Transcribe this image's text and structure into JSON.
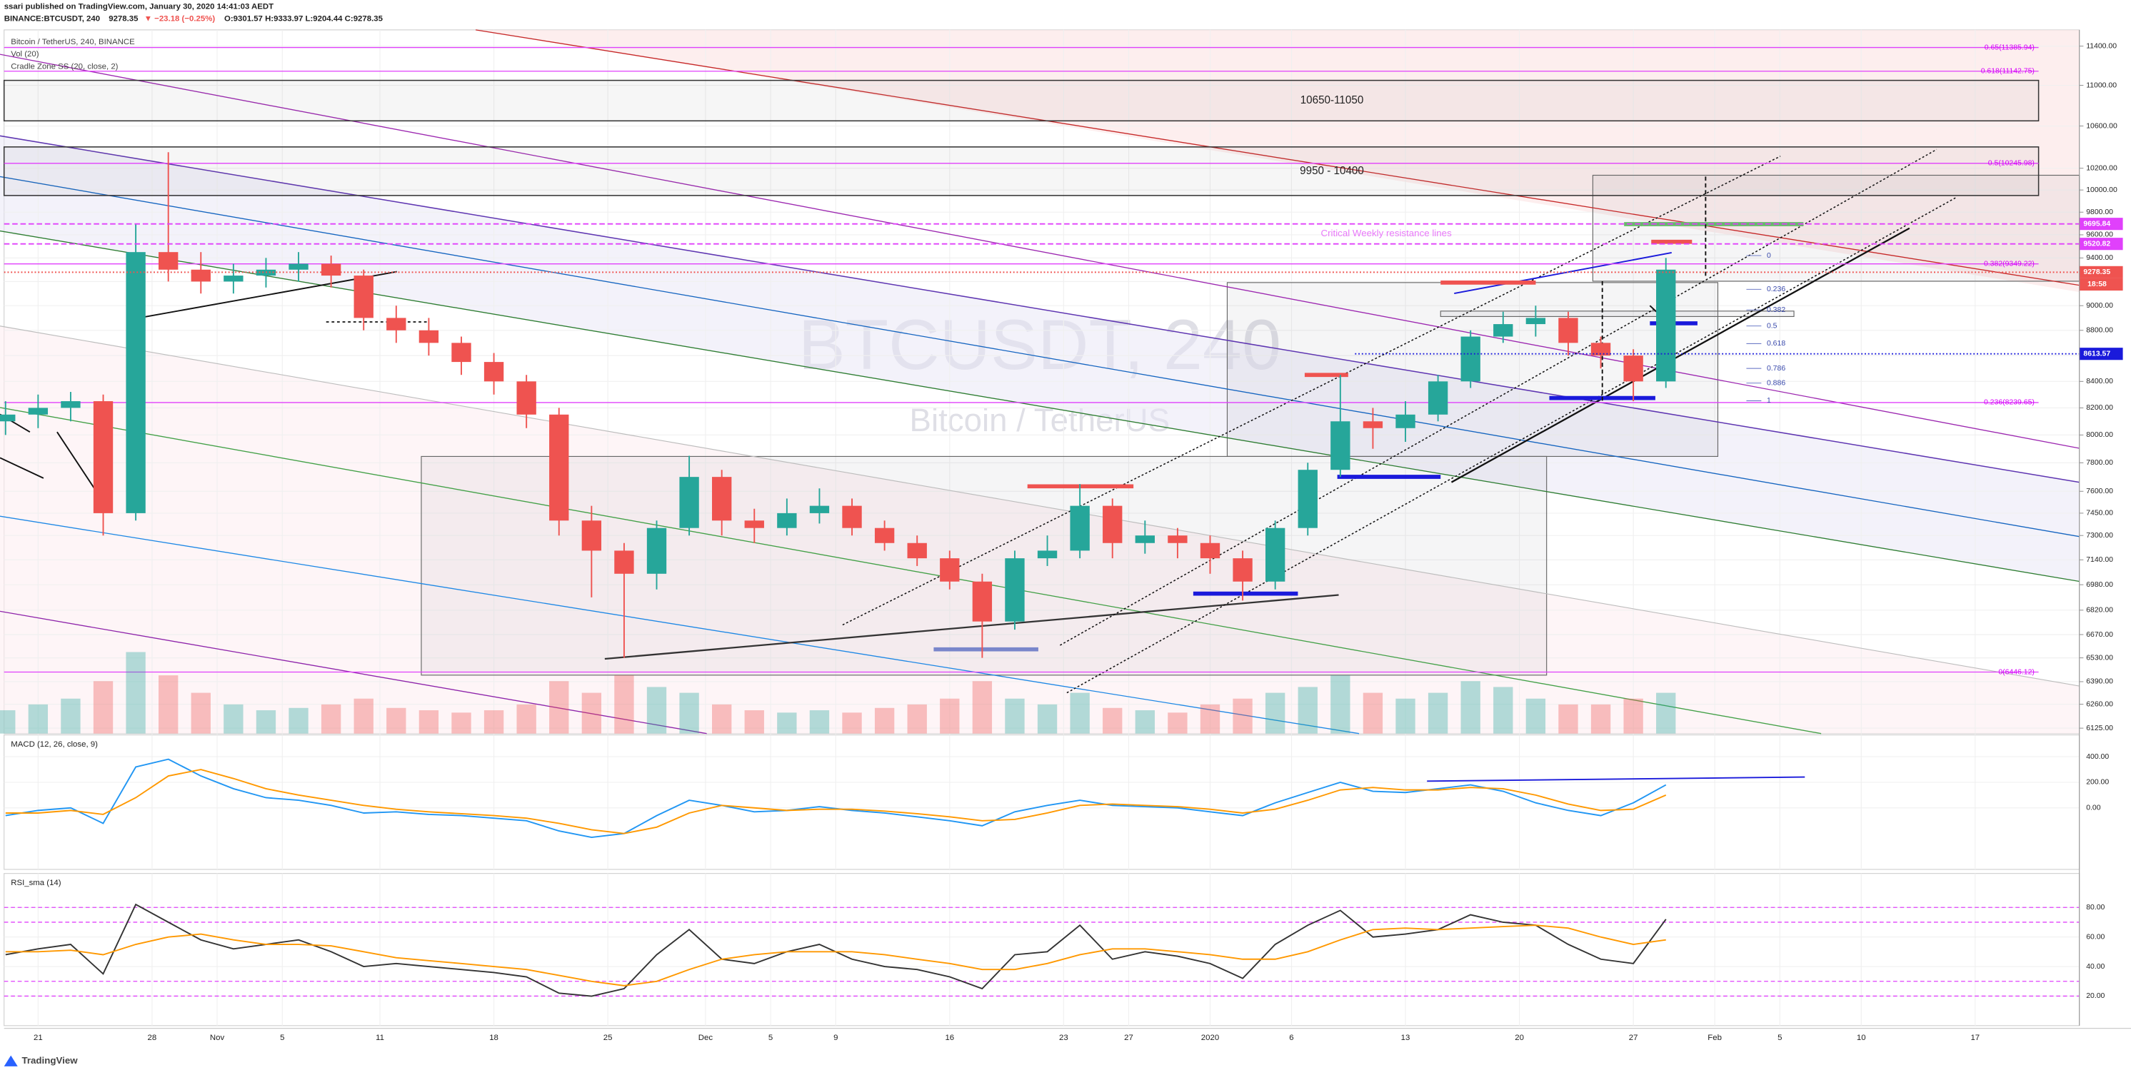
{
  "header": {
    "published": "ssari published on TradingView.com, January 30, 2020 14:41:03 AEDT",
    "symbol": "BINANCE:BTCUSDT, 240",
    "price": "9278.35",
    "change": "▼ −23.18 (−0.25%)",
    "ohlc": "O:9301.57 H:9333.97 L:9204.44 C:9278.35"
  },
  "footer": "TradingView",
  "chart_data": {
    "type": "candlestick",
    "legend": [
      "Bitcoin / TetherUS, 240, BINANCE",
      "Vol (20)",
      "Cradle Zone SS (20, close, 2)"
    ],
    "watermark": {
      "symbol": "BTCUSDT, 240",
      "name": "Bitcoin / TetherUS"
    },
    "up_color": "#26a69a",
    "down_color": "#ef5350",
    "log": true,
    "grid": true,
    "x": [
      -2,
      0,
      2,
      4,
      6,
      8,
      10,
      12,
      14,
      16,
      18,
      20,
      22,
      24,
      26,
      28,
      30,
      32,
      34,
      36,
      38,
      40,
      42,
      44,
      46,
      48,
      50,
      52,
      54,
      56,
      58,
      60,
      62,
      64,
      66,
      68,
      70,
      72,
      74,
      76,
      78,
      80,
      82,
      84,
      86,
      88,
      90,
      92,
      94,
      96,
      98,
      100
    ],
    "open": [
      8100,
      8150,
      8200,
      8250,
      7450,
      9450,
      9300,
      9200,
      9250,
      9300,
      9350,
      9250,
      8900,
      8800,
      8700,
      8550,
      8400,
      8150,
      7400,
      7200,
      7050,
      7350,
      7700,
      7400,
      7350,
      7450,
      7500,
      7350,
      7250,
      7150,
      7000,
      6750,
      7150,
      7200,
      7500,
      7250,
      7300,
      7250,
      7150,
      7000,
      7350,
      7750,
      8100,
      8050,
      8150,
      8400,
      8750,
      8850,
      8900,
      8700,
      8600,
      8400
    ],
    "high": [
      8250,
      8300,
      8320,
      8300,
      9700,
      10350,
      9450,
      9350,
      9400,
      9450,
      9420,
      9300,
      9000,
      8900,
      8750,
      8620,
      8450,
      8200,
      7500,
      7250,
      7400,
      7850,
      7750,
      7480,
      7550,
      7620,
      7550,
      7400,
      7300,
      7200,
      7050,
      7200,
      7300,
      7650,
      7550,
      7400,
      7350,
      7300,
      7200,
      7400,
      7800,
      8450,
      8200,
      8250,
      8450,
      8800,
      8950,
      9000,
      8950,
      8750,
      8650,
      9400
    ],
    "low": [
      8000,
      8050,
      8100,
      7300,
      7400,
      9200,
      9100,
      9100,
      9150,
      9200,
      9150,
      8800,
      8700,
      8600,
      8450,
      8300,
      8050,
      7300,
      6900,
      6530,
      6950,
      7300,
      7300,
      7250,
      7300,
      7380,
      7300,
      7200,
      7100,
      6950,
      6530,
      6700,
      7100,
      7150,
      7150,
      7180,
      7150,
      7050,
      6880,
      6950,
      7300,
      7700,
      7900,
      7950,
      8100,
      8350,
      8700,
      8750,
      8600,
      8500,
      8250,
      8350
    ],
    "close": [
      8150,
      8200,
      8250,
      7450,
      9450,
      9300,
      9200,
      9250,
      9300,
      9350,
      9250,
      8900,
      8800,
      8700,
      8550,
      8400,
      8150,
      7400,
      7200,
      7050,
      7350,
      7700,
      7400,
      7350,
      7450,
      7500,
      7350,
      7250,
      7150,
      7000,
      6750,
      7150,
      7200,
      7500,
      7250,
      7300,
      7250,
      7150,
      7000,
      7350,
      7750,
      8100,
      8050,
      8150,
      8400,
      8750,
      8850,
      8900,
      8700,
      8600,
      8400,
      9300
    ],
    "volume": [
      20,
      25,
      30,
      45,
      70,
      50,
      35,
      25,
      20,
      22,
      25,
      30,
      22,
      20,
      18,
      20,
      25,
      45,
      35,
      50,
      40,
      35,
      25,
      20,
      18,
      20,
      18,
      22,
      25,
      30,
      45,
      30,
      25,
      35,
      22,
      20,
      18,
      25,
      30,
      35,
      40,
      50,
      35,
      30,
      35,
      45,
      40,
      30,
      25,
      25,
      30,
      35
    ],
    "xlim": [
      -2.09,
      125.4
    ],
    "xticks": [
      {
        "value": 0,
        "label": "21"
      },
      {
        "value": 7,
        "label": "28"
      },
      {
        "value": 11,
        "label": "Nov"
      },
      {
        "value": 15,
        "label": "5"
      },
      {
        "value": 21,
        "label": "11"
      },
      {
        "value": 28,
        "label": "18"
      },
      {
        "value": 35,
        "label": "25"
      },
      {
        "value": 41,
        "label": "Dec"
      },
      {
        "value": 45,
        "label": "5"
      },
      {
        "value": 49,
        "label": "9"
      },
      {
        "value": 56,
        "label": "16"
      },
      {
        "value": 63,
        "label": "23"
      },
      {
        "value": 67,
        "label": "27"
      },
      {
        "value": 72,
        "label": "2020"
      },
      {
        "value": 77,
        "label": "6"
      },
      {
        "value": 84,
        "label": "13"
      },
      {
        "value": 91,
        "label": "20"
      },
      {
        "value": 98,
        "label": "27"
      },
      {
        "value": 103,
        "label": "Feb"
      },
      {
        "value": 107,
        "label": "5"
      },
      {
        "value": 112,
        "label": "10"
      },
      {
        "value": 119,
        "label": "17"
      }
    ],
    "ylim": [
      6095,
      11570
    ],
    "yticks": [
      {
        "value": 11400,
        "label": "11400.00"
      },
      {
        "value": 11000,
        "label": "11000.00"
      },
      {
        "value": 10600,
        "label": "10600.00"
      },
      {
        "value": 10200,
        "label": "10200.00"
      },
      {
        "value": 10000,
        "label": "10000.00"
      },
      {
        "value": 9800,
        "label": "9800.00"
      },
      {
        "value": 9600,
        "label": "9600.00"
      },
      {
        "value": 9400,
        "label": "9400.00"
      },
      {
        "value": 9200,
        "label": "9200.00"
      },
      {
        "value": 9000,
        "label": "9000.00"
      },
      {
        "value": 8800,
        "label": "8800.00"
      },
      {
        "value": 8600,
        "label": "8600.00"
      },
      {
        "value": 8400,
        "label": "8400.00"
      },
      {
        "value": 8200,
        "label": "8200.00"
      },
      {
        "value": 8000,
        "label": "8000.00"
      },
      {
        "value": 7800,
        "label": "7800.00"
      },
      {
        "value": 7600,
        "label": "7600.00"
      },
      {
        "value": 7450,
        "label": "7450.00"
      },
      {
        "value": 7300,
        "label": "7300.00"
      },
      {
        "value": 7140,
        "label": "7140.00"
      },
      {
        "value": 6980,
        "label": "6980.00"
      },
      {
        "value": 6820,
        "label": "6820.00"
      },
      {
        "value": 6670,
        "label": "6670.00"
      },
      {
        "value": 6530,
        "label": "6530.00"
      },
      {
        "value": 6390,
        "label": "6390.00"
      },
      {
        "value": 6260,
        "label": "6260.00"
      },
      {
        "value": 6125,
        "label": "6125.00"
      }
    ],
    "fib_levels": [
      {
        "value": 11385.94,
        "label": "0.65(11385.94)"
      },
      {
        "value": 11142.75,
        "label": "0.618(11142.75)"
      },
      {
        "value": 10245.98,
        "label": "0.5(10245.98)"
      },
      {
        "value": 9349.22,
        "label": "0.382(9349.22)"
      },
      {
        "value": 8239.65,
        "label": "0.236(8239.65)"
      },
      {
        "value": 6446.12,
        "label": "0(6446.12)"
      }
    ],
    "zones": [
      {
        "label": "10650-11050",
        "low": 10650,
        "high": 11050
      },
      {
        "label": "9950 - 10400",
        "low": 9950,
        "high": 10400
      }
    ],
    "annotation": "Critical Weekly resistance lines",
    "retracement": [
      {
        "value": 9420,
        "label": "0"
      },
      {
        "value": 9135,
        "label": "0.236"
      },
      {
        "value": 8965,
        "label": "0.382"
      },
      {
        "value": 8835,
        "label": "0.5"
      },
      {
        "value": 8694,
        "label": "0.618"
      },
      {
        "value": 8500,
        "label": "0.786"
      },
      {
        "value": 8387,
        "label": "0.886"
      },
      {
        "value": 8253,
        "label": "1"
      }
    ],
    "price_lines": [
      {
        "value": 9695.84,
        "color": "#e040fb",
        "style": "dashed"
      },
      {
        "value": 9520.82,
        "color": "#e040fb",
        "style": "dashed"
      },
      {
        "value": 9278.35,
        "color": "#ef5350",
        "style": "dotted",
        "countdown": "18:58"
      },
      {
        "value": 8613.57,
        "color": "#1a1adb",
        "style": "dotted"
      }
    ],
    "macd": {
      "title": "MACD (12, 26, close, 9)",
      "ylim": [
        -480,
        570
      ],
      "yticks": [
        {
          "value": 400,
          "label": "400.00"
        },
        {
          "value": 200,
          "label": "200.00"
        },
        {
          "value": 0,
          "label": "0.00"
        }
      ],
      "series": [
        {
          "color": "#2196f3",
          "values": [
            -60,
            -20,
            0,
            -120,
            320,
            380,
            250,
            150,
            80,
            60,
            20,
            -40,
            -30,
            -50,
            -60,
            -80,
            -100,
            -180,
            -230,
            -200,
            -60,
            60,
            20,
            -30,
            -20,
            10,
            -20,
            -40,
            -70,
            -100,
            -140,
            -30,
            20,
            60,
            20,
            10,
            0,
            -30,
            -60,
            40,
            120,
            200,
            130,
            120,
            150,
            180,
            130,
            40,
            -20,
            -60,
            40,
            180
          ]
        },
        {
          "color": "#ff9800",
          "values": [
            -40,
            -40,
            -20,
            -50,
            80,
            250,
            300,
            230,
            150,
            100,
            60,
            20,
            -10,
            -30,
            -45,
            -60,
            -80,
            -120,
            -170,
            -200,
            -150,
            -40,
            20,
            0,
            -20,
            -10,
            -10,
            -25,
            -45,
            -70,
            -100,
            -90,
            -40,
            20,
            30,
            20,
            10,
            -10,
            -40,
            -10,
            60,
            140,
            160,
            140,
            140,
            160,
            150,
            100,
            30,
            -20,
            -10,
            100
          ]
        }
      ]
    },
    "rsi": {
      "title": "RSI_sma (14)",
      "ylim": [
        0,
        103
      ],
      "levels": [
        80,
        70,
        30,
        20
      ],
      "yticks": [
        {
          "value": 80,
          "label": "80.00"
        },
        {
          "value": 60,
          "label": "60.00"
        },
        {
          "value": 40,
          "label": "40.00"
        },
        {
          "value": 20,
          "label": "20.00"
        }
      ],
      "series": [
        {
          "color": "#333333",
          "values": [
            48,
            52,
            55,
            35,
            82,
            70,
            58,
            52,
            55,
            58,
            50,
            40,
            42,
            40,
            38,
            36,
            33,
            22,
            20,
            25,
            48,
            65,
            45,
            42,
            50,
            55,
            45,
            40,
            38,
            33,
            25,
            48,
            50,
            68,
            45,
            50,
            47,
            42,
            32,
            55,
            68,
            78,
            60,
            62,
            65,
            75,
            70,
            68,
            55,
            45,
            42,
            72
          ]
        },
        {
          "color": "#ff9800",
          "values": [
            50,
            50,
            51,
            48,
            55,
            60,
            62,
            58,
            55,
            55,
            54,
            50,
            46,
            44,
            42,
            40,
            38,
            34,
            30,
            27,
            30,
            38,
            45,
            48,
            50,
            50,
            50,
            48,
            45,
            42,
            38,
            38,
            42,
            48,
            52,
            52,
            50,
            48,
            45,
            45,
            50,
            58,
            65,
            66,
            65,
            66,
            67,
            68,
            66,
            60,
            55,
            58
          ]
        }
      ]
    }
  }
}
